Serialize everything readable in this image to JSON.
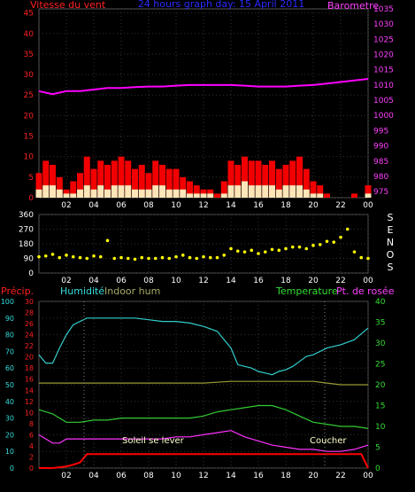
{
  "chart_data": [
    {
      "type": "line",
      "title": "24 hours graph day: 15 April 2011",
      "left_axis_label": "Vitesse du vent",
      "right_axis_label": "Barometre",
      "x_tick_labels": [
        "02",
        "04",
        "06",
        "08",
        "10",
        "12",
        "14",
        "16",
        "18",
        "20",
        "22",
        "00"
      ],
      "y_left": {
        "ticks": [
          0,
          5,
          10,
          15,
          20,
          25,
          30,
          35,
          40,
          45
        ],
        "range": [
          0,
          46
        ]
      },
      "y_right": {
        "ticks": [
          975,
          980,
          985,
          990,
          995,
          1000,
          1005,
          1010,
          1015,
          1020,
          1025,
          1030,
          1035
        ],
        "range": [
          973,
          1035
        ]
      },
      "series": [
        {
          "color": "#ff00ff",
          "axis": "right",
          "x": [
            0,
            1,
            2,
            3,
            4,
            5,
            6,
            7,
            8,
            9,
            10,
            11,
            12,
            13,
            14,
            15,
            16,
            17,
            18,
            19,
            20,
            21,
            22,
            23,
            24
          ],
          "y": [
            1008,
            1007,
            1008,
            1008,
            1008.5,
            1009,
            1009,
            1009.3,
            1009.5,
            1009.5,
            1009.8,
            1010,
            1010,
            1010,
            1010,
            1009.8,
            1009.5,
            1009.5,
            1009.5,
            1009.8,
            1010,
            1010.5,
            1011,
            1011.5,
            1012
          ]
        },
        {
          "color": "#ff0000",
          "axis": "left",
          "x": [
            0,
            0.5,
            1,
            1.5,
            2,
            2.5,
            3,
            3.5,
            4,
            4.5,
            5,
            5.5,
            6,
            6.5,
            7,
            7.5,
            8,
            8.5,
            9,
            9.5,
            10,
            10.5,
            11,
            11.5,
            12,
            12.5,
            13,
            13.5,
            14,
            14.5,
            15,
            15.5,
            16,
            16.5,
            17,
            17.5,
            18,
            18.5,
            19,
            19.5,
            20,
            20.5,
            21,
            21.5,
            22,
            22.5,
            23,
            23.5,
            24
          ],
          "y": [
            6,
            9,
            8,
            5,
            2,
            4,
            6,
            10,
            7,
            9,
            8,
            9,
            10,
            9,
            7,
            8,
            6,
            9,
            8,
            7,
            7,
            5,
            4,
            3,
            2,
            2,
            1,
            4,
            9,
            8,
            10,
            9,
            9,
            8,
            9,
            7,
            8,
            9,
            10,
            7,
            4,
            3,
            1,
            0,
            0,
            0,
            1,
            0,
            3
          ]
        },
        {
          "color": "#ffffcc",
          "axis": "left",
          "x": [
            0,
            0.5,
            1,
            1.5,
            2,
            2.5,
            3,
            3.5,
            4,
            4.5,
            5,
            5.5,
            6,
            6.5,
            7,
            7.5,
            8,
            8.5,
            9,
            9.5,
            10,
            10.5,
            11,
            11.5,
            12,
            12.5,
            13,
            13.5,
            14,
            14.5,
            15,
            15.5,
            16,
            16.5,
            17,
            17.5,
            18,
            18.5,
            19,
            19.5,
            20,
            20.5,
            21,
            21.5,
            22,
            22.5,
            23,
            23.5,
            24
          ],
          "y": [
            2,
            3,
            3,
            2,
            1,
            1,
            2,
            3,
            2,
            3,
            2,
            3,
            3,
            3,
            2,
            2,
            2,
            3,
            3,
            2,
            2,
            2,
            1,
            1,
            1,
            1,
            0,
            1,
            3,
            3,
            4,
            3,
            3,
            3,
            3,
            2,
            3,
            3,
            3,
            2,
            1,
            1,
            0,
            0,
            0,
            0,
            0,
            0,
            1
          ]
        }
      ]
    },
    {
      "type": "scatter",
      "right_axis_label": "SENOS",
      "x_tick_labels": [
        "02",
        "04",
        "06",
        "08",
        "10",
        "12",
        "14",
        "16",
        "18",
        "20",
        "22",
        "00"
      ],
      "y_left": {
        "ticks": [
          0,
          90,
          180,
          270,
          360
        ],
        "range": [
          0,
          360
        ]
      },
      "series": [
        {
          "color": "#ffff00",
          "x": [
            0,
            0.5,
            1,
            1.5,
            2,
            2.5,
            3,
            3.5,
            4,
            4.5,
            5,
            5.5,
            6,
            6.5,
            7,
            7.5,
            8,
            8.5,
            9,
            9.5,
            10,
            10.5,
            11,
            11.5,
            12,
            12.5,
            13,
            13.5,
            14,
            14.5,
            15,
            15.5,
            16,
            16.5,
            17,
            17.5,
            18,
            18.5,
            19,
            19.5,
            20,
            20.5,
            21,
            21.5,
            22,
            22.5,
            23,
            23.5,
            24
          ],
          "y": [
            100,
            105,
            115,
            95,
            110,
            100,
            95,
            90,
            105,
            100,
            200,
            90,
            95,
            90,
            85,
            95,
            90,
            90,
            95,
            90,
            100,
            110,
            95,
            90,
            100,
            95,
            95,
            110,
            150,
            135,
            130,
            140,
            120,
            130,
            145,
            140,
            150,
            160,
            160,
            150,
            170,
            175,
            195,
            190,
            220,
            270,
            130,
            95,
            90
          ]
        }
      ]
    },
    {
      "type": "line",
      "labels": {
        "precip": "Précip.",
        "humidity": "Humidité",
        "indoor_hum": "Indoor hum",
        "temperature": "Temperature",
        "dewpoint": "Pt. de rosée",
        "sunrise": "Soleil se lever",
        "sunset": "Coucher"
      },
      "x_tick_labels": [
        "02",
        "04",
        "06",
        "08",
        "10",
        "12",
        "14",
        "16",
        "18",
        "20",
        "22",
        "00"
      ],
      "y_axis_humidity": {
        "ticks": [
          0,
          10,
          20,
          30,
          40,
          50,
          60,
          70,
          80,
          90,
          100
        ],
        "range": [
          0,
          100
        ]
      },
      "y_axis_precip": {
        "ticks": [
          0,
          2,
          4,
          6,
          8,
          10,
          12,
          14,
          16,
          18,
          20,
          22,
          24,
          26,
          28,
          30
        ],
        "range": [
          0,
          30
        ]
      },
      "y_axis_temperature": {
        "ticks": [
          0,
          5,
          10,
          15,
          20,
          25,
          30,
          35,
          40
        ],
        "range": [
          0,
          40
        ]
      },
      "series": [
        {
          "name": "Humidité",
          "color": "#33cccc",
          "axis": "humidity",
          "x": [
            0,
            0.5,
            1,
            1.5,
            2,
            2.5,
            3,
            3.5,
            4,
            5,
            6,
            7,
            8,
            9,
            10,
            11,
            12,
            13,
            14,
            14.5,
            15,
            15.5,
            16,
            16.5,
            17,
            17.5,
            18,
            18.5,
            19,
            19.5,
            20,
            21,
            22,
            23,
            24
          ],
          "y": [
            68,
            63,
            63,
            72,
            80,
            86,
            88,
            90,
            90,
            90,
            90,
            90,
            89,
            88,
            88,
            87,
            85,
            82,
            72,
            62,
            61,
            60,
            58,
            57,
            56,
            58,
            59,
            61,
            64,
            67,
            68,
            72,
            74,
            77,
            84
          ]
        },
        {
          "name": "Indoor hum",
          "color": "#999933",
          "axis": "humidity",
          "x": [
            0,
            2,
            4,
            6,
            8,
            10,
            12,
            14,
            16,
            18,
            20,
            21,
            22,
            23,
            24
          ],
          "y": [
            51,
            51,
            51,
            51,
            51,
            51,
            51,
            52,
            52,
            52,
            52,
            51,
            50,
            50,
            50
          ]
        },
        {
          "name": "Temperature",
          "color": "#33cc33",
          "axis": "temperature",
          "x": [
            0,
            1,
            2,
            3,
            4,
            5,
            6,
            7,
            8,
            9,
            10,
            11,
            12,
            13,
            14,
            15,
            16,
            17,
            18,
            19,
            20,
            21,
            22,
            23,
            24
          ],
          "y": [
            14,
            13,
            11,
            11,
            11.5,
            11.5,
            12,
            12,
            12,
            12,
            12,
            12,
            12.5,
            13.5,
            14,
            14.5,
            15,
            15,
            14,
            12.5,
            11,
            10.5,
            10,
            10,
            9.5
          ]
        },
        {
          "name": "Pt. de rosée",
          "color": "#ff33ff",
          "axis": "temperature",
          "x": [
            0,
            0.5,
            1,
            1.5,
            2,
            3,
            4,
            5,
            6,
            7,
            8,
            9,
            10,
            11,
            12,
            13,
            14,
            15,
            16,
            17,
            18,
            19,
            20,
            21,
            22,
            23,
            24
          ],
          "y": [
            8,
            7,
            6,
            6,
            7,
            7,
            7,
            7,
            7,
            7,
            7,
            7,
            7.5,
            7.5,
            8,
            8.5,
            9,
            7.5,
            6.5,
            5.5,
            5,
            4.5,
            4.5,
            4,
            4,
            4.5,
            5.5
          ]
        },
        {
          "name": "Précip.",
          "color": "#ff0000",
          "axis": "precip",
          "x": [
            0,
            1,
            2,
            2.5,
            3,
            3.5,
            4,
            8,
            12,
            16,
            20,
            23.5,
            24
          ],
          "y": [
            0,
            0,
            0.3,
            0.6,
            1,
            2.5,
            2.5,
            2.5,
            2.5,
            2.5,
            2.5,
            2.5,
            0
          ]
        }
      ]
    }
  ]
}
